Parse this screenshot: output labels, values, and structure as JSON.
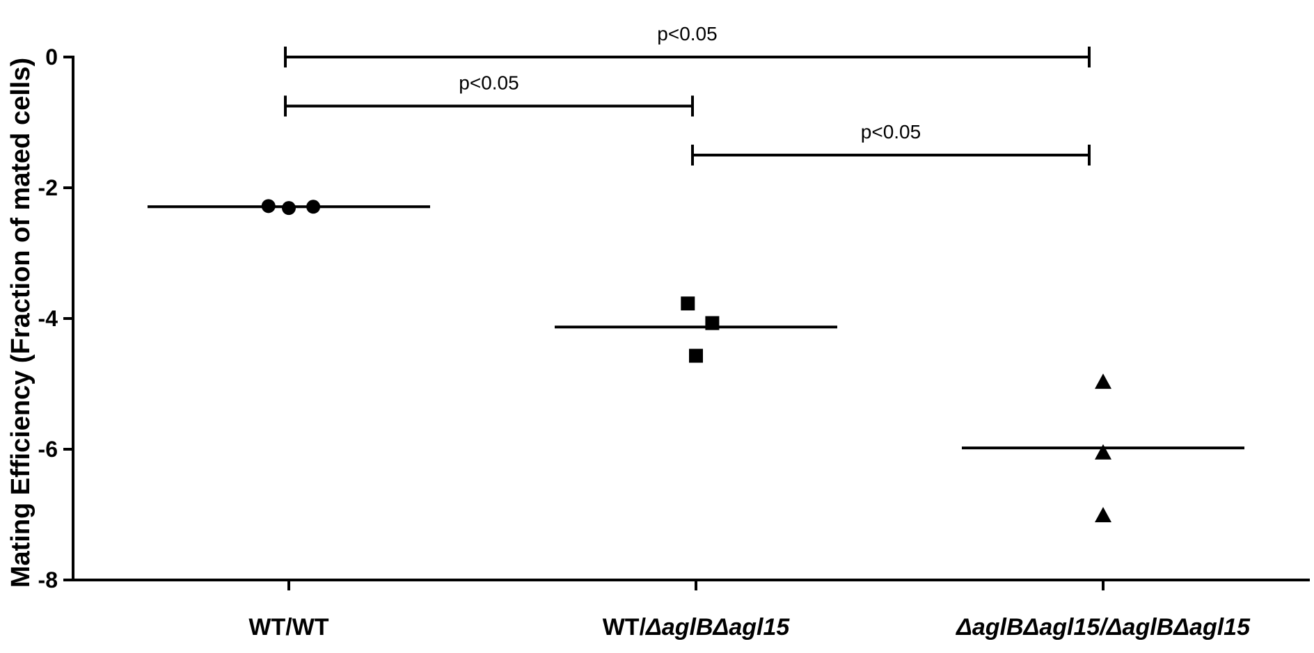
{
  "chart_data": {
    "type": "scatter",
    "title": "",
    "xlabel": "",
    "ylabel": "Mating Efficiency (Fraction of mated cells)",
    "ylim": [
      -8,
      0
    ],
    "yticks": [
      0,
      -2,
      -4,
      -6,
      -8
    ],
    "ytick_labels": [
      "0",
      "-2",
      "-4",
      "-6",
      "-8"
    ],
    "grid": false,
    "legend": "none",
    "categories": [
      {
        "parts": [
          {
            "text": "WT/WT",
            "italic": false
          }
        ]
      },
      {
        "parts": [
          {
            "text": "WT/",
            "italic": false
          },
          {
            "text": "ΔaglBΔagl15",
            "italic": true
          }
        ]
      },
      {
        "parts": [
          {
            "text": "ΔaglBΔagl15/ΔaglBΔagl15",
            "italic": true
          }
        ]
      }
    ],
    "series": [
      {
        "marker": "circle",
        "points": [
          {
            "x": -0.05,
            "y": -2.28
          },
          {
            "x": 0.0,
            "y": -2.31
          },
          {
            "x": 0.06,
            "y": -2.29
          }
        ],
        "mean": -2.29
      },
      {
        "marker": "square",
        "points": [
          {
            "x": -0.02,
            "y": -3.77
          },
          {
            "x": 0.04,
            "y": -4.07
          },
          {
            "x": 0.0,
            "y": -4.57
          }
        ],
        "mean": -4.13
      },
      {
        "marker": "triangle",
        "points": [
          {
            "x": 0.0,
            "y": -4.97
          },
          {
            "x": 0.0,
            "y": -6.05
          },
          {
            "x": 0.0,
            "y": -7.01
          }
        ],
        "mean": -5.98
      }
    ],
    "significance": [
      {
        "from": 0,
        "to": 2,
        "y": 0.0,
        "label": "p<0.05"
      },
      {
        "from": 0,
        "to": 1,
        "y": -0.75,
        "label": "p<0.05"
      },
      {
        "from": 1,
        "to": 2,
        "y": -1.5,
        "label": "p<0.05"
      }
    ]
  }
}
